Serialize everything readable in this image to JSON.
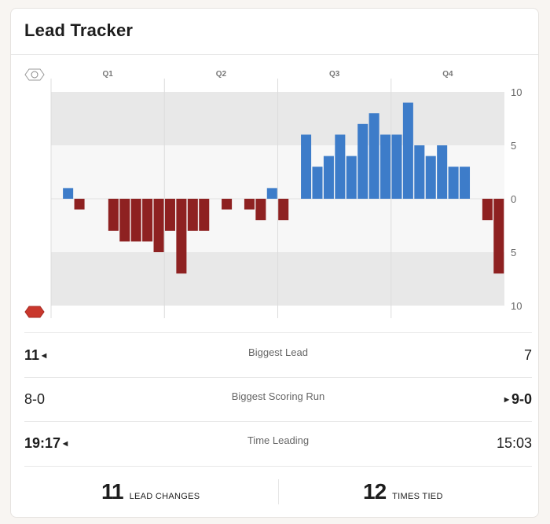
{
  "title": "Lead Tracker",
  "colors": {
    "home": "#3d7cc9",
    "away": "#8e2121",
    "band_dark": "#e8e8e8",
    "band_light": "#f7f7f7"
  },
  "chart_data": {
    "type": "bar",
    "quarters": [
      "Q1",
      "Q2",
      "Q3",
      "Q4"
    ],
    "y_tick_labels": [
      "10",
      "5",
      "0",
      "5",
      "10"
    ],
    "ylim": [
      -10,
      10
    ],
    "slots": 40,
    "values": [
      0,
      1,
      -1,
      0,
      0,
      -3,
      -4,
      -4,
      -4,
      -5,
      -3,
      -7,
      -3,
      -3,
      0,
      -1,
      0,
      -1,
      -2,
      1,
      -2,
      0,
      6,
      3,
      4,
      6,
      4,
      7,
      8,
      6,
      6,
      9,
      5,
      4,
      5,
      3,
      3,
      0,
      -2,
      -7
    ],
    "positive_team_icon": "top-team-logo-icon",
    "negative_team_icon": "bottom-team-logo-icon"
  },
  "stats": [
    {
      "label": "Biggest Lead",
      "left": "11",
      "right": "7",
      "leader": "left"
    },
    {
      "label": "Biggest Scoring Run",
      "left": "8-0",
      "right": "9-0",
      "leader": "right"
    },
    {
      "label": "Time Leading",
      "left": "19:17",
      "right": "15:03",
      "leader": "left"
    }
  ],
  "totals": {
    "lead_changes": {
      "value": "11",
      "label": "LEAD CHANGES"
    },
    "times_tied": {
      "value": "12",
      "label": "TIMES TIED"
    }
  }
}
